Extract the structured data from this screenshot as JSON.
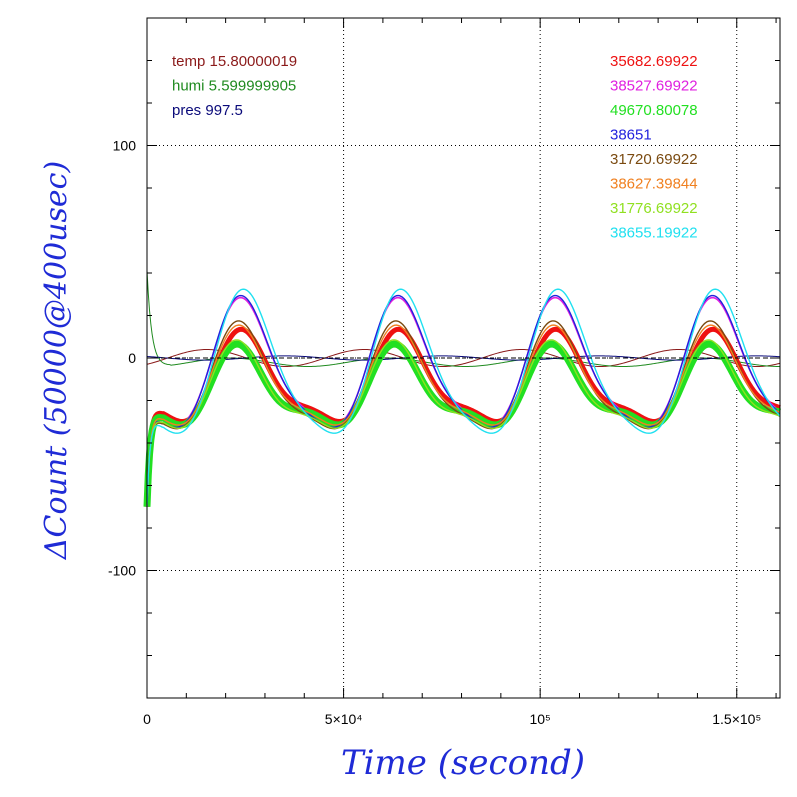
{
  "chart_data": {
    "type": "line",
    "xlabel": "Time (second)",
    "ylabel": "ΔCount (50000@400usec)",
    "xlim": [
      0,
      161000
    ],
    "ylim": [
      -160,
      160
    ],
    "grid": true,
    "grid_style": "dotted",
    "x_ticks": [
      {
        "value": 0,
        "label": "0"
      },
      {
        "value": 50000,
        "label": "5×10⁴"
      },
      {
        "value": 100000,
        "label": "10⁵"
      },
      {
        "value": 150000,
        "label": "1.5×10⁵"
      }
    ],
    "y_ticks": [
      {
        "value": 100,
        "label": "100"
      },
      {
        "value": 0,
        "label": "0"
      },
      {
        "value": -100,
        "label": "-100"
      }
    ],
    "env_legend": [
      {
        "text": "temp 15.80000019",
        "color": "#8b1a1a"
      },
      {
        "text": "humi 5.599999905",
        "color": "#1f8a1f"
      },
      {
        "text": "pres 997.5",
        "color": "#0a0a7a"
      }
    ],
    "series": [
      {
        "name": "35682.69922",
        "color": "#ee1111",
        "amp": 20,
        "base": -12,
        "phase": 0.0,
        "width": 5
      },
      {
        "name": "38527.69922",
        "color": "#e020e0",
        "amp": 29,
        "base": -6,
        "phase": 0.05,
        "width": 1.6
      },
      {
        "name": "49670.80078",
        "color": "#22e022",
        "amp": 17,
        "base": -16,
        "phase": 0.15,
        "width": 7
      },
      {
        "name": "38651",
        "color": "#2222dd",
        "amp": 30,
        "base": -6,
        "phase": 0.05,
        "width": 1.4
      },
      {
        "name": "31720.69922",
        "color": "#7a4a10",
        "amp": 24,
        "base": -12,
        "phase": 0.12,
        "width": 1.4
      },
      {
        "name": "38627.39844",
        "color": "#f08020",
        "amp": 22,
        "base": -12,
        "phase": 0.1,
        "width": 1.4
      },
      {
        "name": "31776.69922",
        "color": "#90e020",
        "amp": 19,
        "base": -16,
        "phase": 0.18,
        "width": 1.4
      },
      {
        "name": "38655.19922",
        "color": "#20e0f0",
        "amp": 33,
        "base": -6,
        "phase": -0.05,
        "width": 1.4
      }
    ],
    "env_series": [
      {
        "name": "temp",
        "color": "#8b1a1a",
        "amp": 4,
        "base": 0,
        "phase": 3.1
      },
      {
        "name": "humi",
        "color": "#1f8a1f",
        "amp": 2,
        "base": -2,
        "phase": 2.2
      },
      {
        "name": "pres",
        "color": "#0a0a7a",
        "amp": 1,
        "base": 0,
        "phase": 0
      }
    ],
    "period_seconds": 40000,
    "peak_times": [
      25000,
      65000,
      105000,
      145000
    ]
  }
}
